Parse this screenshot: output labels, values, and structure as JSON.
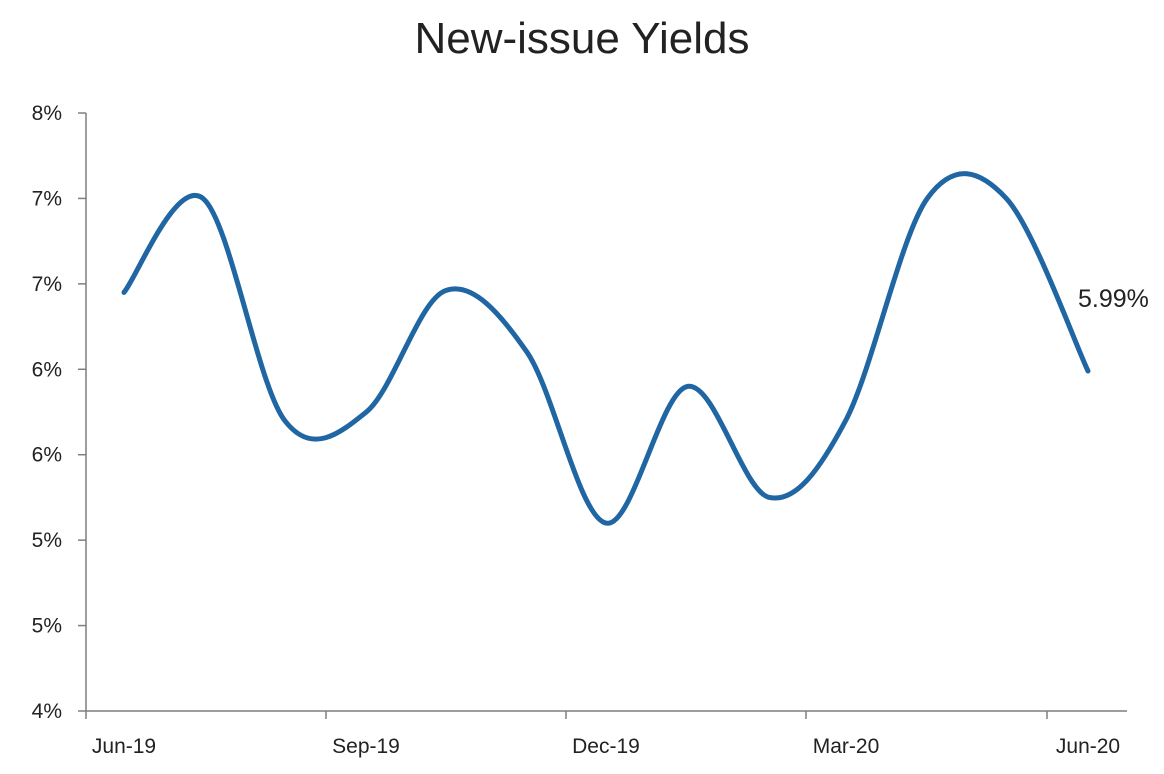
{
  "chart_data": {
    "type": "line",
    "title": "New-issue Yields",
    "xlabel": "",
    "ylabel": "",
    "x_tick_labels": [
      "Jun-19",
      "Sep-19",
      "Dec-19",
      "Mar-20",
      "Jun-20"
    ],
    "y_tick_labels": [
      "4%",
      "5%",
      "5%",
      "6%",
      "6%",
      "7%",
      "7%",
      "8%"
    ],
    "ylim": [
      4.0,
      7.5
    ],
    "grid": false,
    "legend": "none",
    "series": [
      {
        "color": "#1f66a3",
        "points": [
          {
            "x": "2019-06-15",
            "y": 6.45
          },
          {
            "x": "2019-07-15",
            "y": 7.0
          },
          {
            "x": "2019-08-15",
            "y": 5.7
          },
          {
            "x": "2019-09-15",
            "y": 5.75
          },
          {
            "x": "2019-10-15",
            "y": 6.46
          },
          {
            "x": "2019-11-15",
            "y": 6.1
          },
          {
            "x": "2019-12-15",
            "y": 5.1
          },
          {
            "x": "2020-01-15",
            "y": 5.9
          },
          {
            "x": "2020-02-15",
            "y": 5.25
          },
          {
            "x": "2020-03-15",
            "y": 5.7
          },
          {
            "x": "2020-04-15",
            "y": 7.0
          },
          {
            "x": "2020-05-15",
            "y": 7.0
          },
          {
            "x": "2020-06-15",
            "y": 5.99
          }
        ]
      }
    ],
    "end_label": "5.99%"
  }
}
